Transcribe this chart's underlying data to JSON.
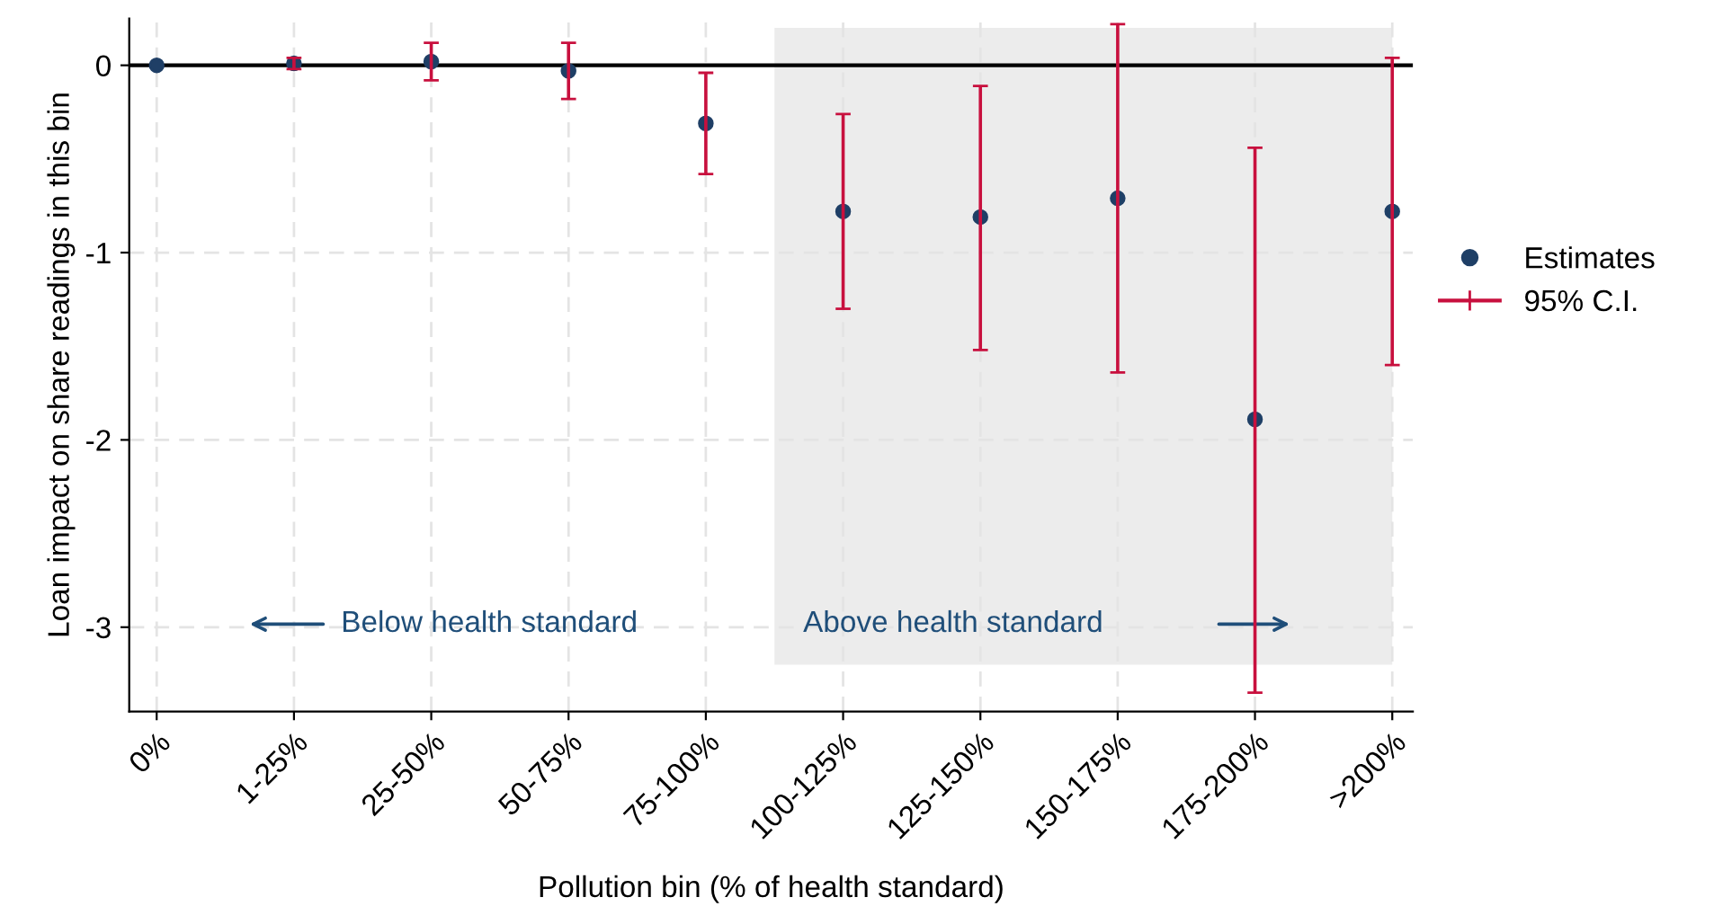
{
  "chart_data": {
    "type": "scatter",
    "xlabel": "Pollution bin (% of health standard)",
    "ylabel": "Loan impact on share readings in this bin",
    "categories": [
      "0%",
      "1-25%",
      "25-50%",
      "50-75%",
      "75-100%",
      "100-125%",
      "125-150%",
      "150-175%",
      "175-200%",
      ">200%"
    ],
    "series": [
      {
        "name": "Estimates",
        "color": "#1f3f66",
        "marker": "circle",
        "values": [
          0,
          0.01,
          0.02,
          -0.03,
          -0.31,
          -0.78,
          -0.81,
          -0.71,
          -1.89,
          -0.78
        ],
        "errors": [
          null,
          [
            -0.02,
            0.04
          ],
          [
            -0.08,
            0.12
          ],
          [
            -0.18,
            0.12
          ],
          [
            -0.58,
            -0.04
          ],
          [
            -1.3,
            -0.26
          ],
          [
            -1.52,
            -0.11
          ],
          [
            -1.64,
            0.22
          ],
          [
            -3.35,
            -0.44
          ],
          [
            -1.6,
            0.04
          ]
        ]
      }
    ],
    "ylim": [
      -3.45,
      0.25
    ],
    "yticks": [
      -3,
      -2,
      -1,
      0
    ],
    "grid": true,
    "legend": "right",
    "ref_lines": [
      {
        "axis": "y",
        "value": 0,
        "color": "#000000",
        "line_style": "solid"
      }
    ],
    "annotations": [
      "Below health standard",
      "Above health standard",
      "95% C.I."
    ]
  }
}
